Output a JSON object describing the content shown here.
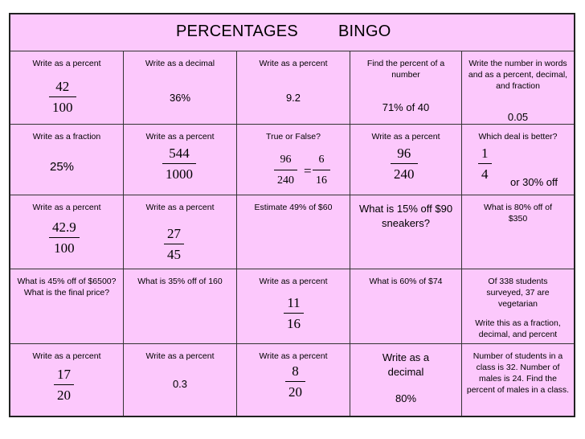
{
  "title": {
    "word1": "PERCENTAGES",
    "word2": "BINGO"
  },
  "row1": {
    "c1": {
      "label": "Write as a percent",
      "num": "42",
      "den": "100"
    },
    "c2": {
      "label": "Write as a decimal",
      "value": "36%"
    },
    "c3": {
      "label": "Write as a percent",
      "value": "9.2"
    },
    "c4": {
      "label": "Find the percent of a number",
      "value": "71% of 40"
    },
    "c5": {
      "label": "Write the number in words and as a percent, decimal, and fraction",
      "value": "0.05"
    }
  },
  "row2": {
    "c1": {
      "label": "Write as a fraction",
      "value": "25%"
    },
    "c2": {
      "label": "Write as a percent",
      "num": "544",
      "den": "1000"
    },
    "c3": {
      "label": "True or False?",
      "num1": "96",
      "den1": "240",
      "eq": "=",
      "num2": "6",
      "den2": "16"
    },
    "c4": {
      "label": "Write as a percent",
      "num": "96",
      "den": "240"
    },
    "c5": {
      "label": "Which deal is better?",
      "num": "1",
      "den": "4",
      "suffix": "or 30% off"
    }
  },
  "row3": {
    "c1": {
      "label": "Write as a percent",
      "num": "42.9",
      "den": "100"
    },
    "c2": {
      "label": "Write as a percent",
      "num": "27",
      "den": "45"
    },
    "c3": {
      "label": "Estimate 49% of $60"
    },
    "c4": {
      "label": "What is 15% off $90 sneakers?"
    },
    "c5": {
      "label": "What is 80% off of $350"
    }
  },
  "row4": {
    "c1": {
      "label": "What is 45% off of $6500? What is the final price?"
    },
    "c2": {
      "label": "What is 35% off of 160"
    },
    "c3": {
      "label": "Write as a percent",
      "num": "11",
      "den": "16"
    },
    "c4": {
      "label": "What is 60% of $74"
    },
    "c5": {
      "label": "Of 338 students surveyed, 37 are vegetarian",
      "label2": "Write this as a fraction, decimal, and percent"
    }
  },
  "row5": {
    "c1": {
      "label": "Write as a percent",
      "num": "17",
      "den": "20"
    },
    "c2": {
      "label": "Write as a percent",
      "value": "0.3"
    },
    "c3": {
      "label": "Write as a percent",
      "num": "8",
      "den": "20"
    },
    "c4": {
      "label": "Write as a decimal",
      "value": "80%"
    },
    "c5": {
      "label": "Number of students in a class is 32. Number of males is 24. Find the percent of males in a class."
    }
  }
}
